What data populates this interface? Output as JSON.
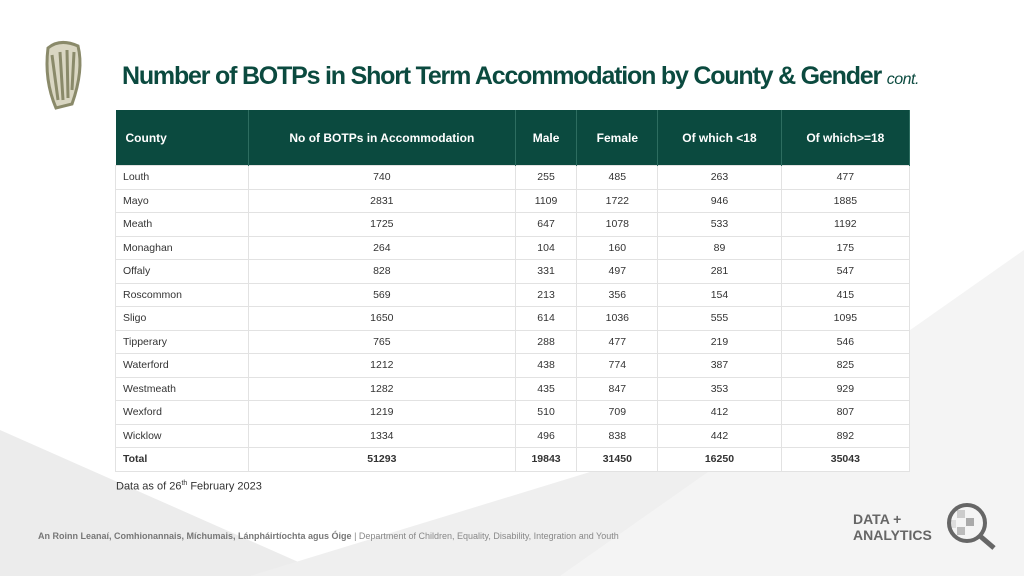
{
  "header": {
    "title": "Number of BOTPs in Short Term Accommodation by County & Gender",
    "title_suffix": "cont."
  },
  "table": {
    "columns": [
      "County",
      "No of BOTPs in Accommodation",
      "Male",
      "Female",
      "Of which <18",
      "Of which>=18"
    ],
    "rows": [
      [
        "Louth",
        740,
        255,
        485,
        263,
        477
      ],
      [
        "Mayo",
        2831,
        1109,
        1722,
        946,
        1885
      ],
      [
        "Meath",
        1725,
        647,
        1078,
        533,
        1192
      ],
      [
        "Monaghan",
        264,
        104,
        160,
        89,
        175
      ],
      [
        "Offaly",
        828,
        331,
        497,
        281,
        547
      ],
      [
        "Roscommon",
        569,
        213,
        356,
        154,
        415
      ],
      [
        "Sligo",
        1650,
        614,
        1036,
        555,
        1095
      ],
      [
        "Tipperary",
        765,
        288,
        477,
        219,
        546
      ],
      [
        "Waterford",
        1212,
        438,
        774,
        387,
        825
      ],
      [
        "Westmeath",
        1282,
        435,
        847,
        353,
        929
      ],
      [
        "Wexford",
        1219,
        510,
        709,
        412,
        807
      ],
      [
        "Wicklow",
        1334,
        496,
        838,
        442,
        892
      ],
      [
        "Total",
        51293,
        19843,
        31450,
        16250,
        35043
      ]
    ]
  },
  "note": {
    "before": "Data as of 26",
    "sup": "th",
    "after": " February 2023"
  },
  "footer": {
    "irish": "An Roinn Leanaí, Comhionannais, Míchumais, Lánpháirtíochta agus Óige",
    "separator": "|",
    "english": "Department of Children, Equality, Disability, Integration and Youth"
  },
  "logo": {
    "line1": "DATA +",
    "line2": "ANALYTICS"
  }
}
